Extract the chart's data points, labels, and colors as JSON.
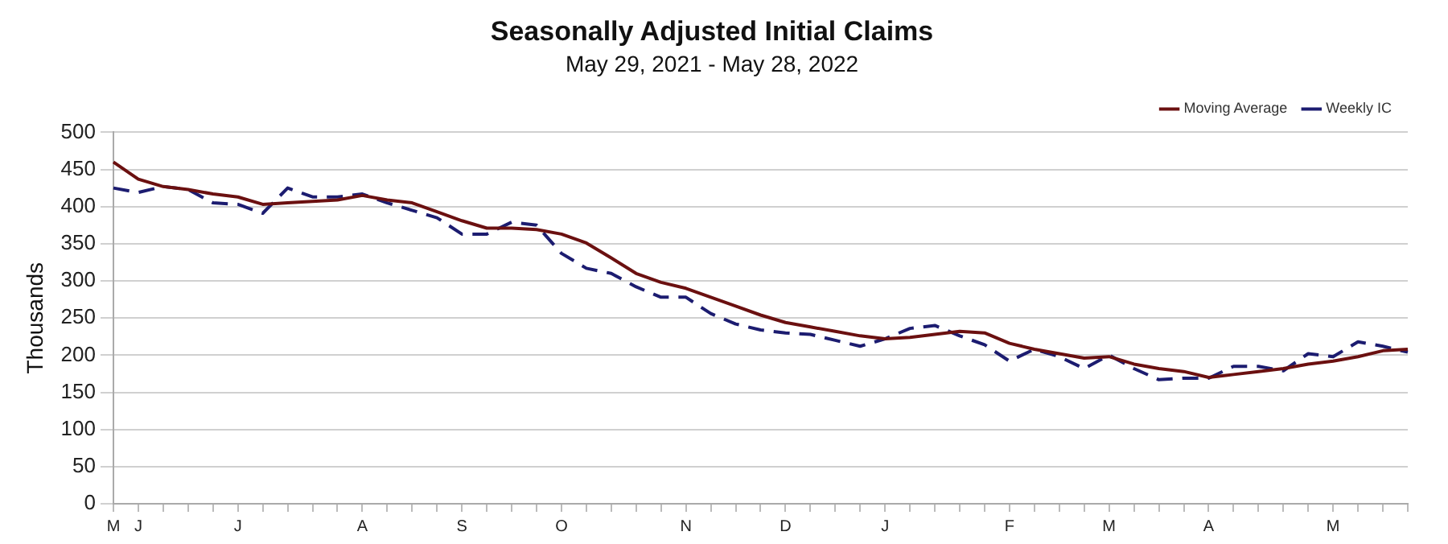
{
  "chart_data": {
    "type": "line",
    "title": "Seasonally Adjusted Initial Claims",
    "subtitle": "May 29, 2021 - May 28, 2022",
    "ylabel": "Thousands",
    "categories": [
      "M",
      "J",
      null,
      null,
      null,
      "J",
      null,
      null,
      null,
      null,
      "A",
      null,
      null,
      null,
      "S",
      null,
      null,
      null,
      "O",
      null,
      null,
      null,
      null,
      "N",
      null,
      null,
      null,
      "D",
      null,
      null,
      null,
      "J",
      null,
      null,
      null,
      null,
      "F",
      null,
      null,
      null,
      "M",
      null,
      null,
      null,
      "A",
      null,
      null,
      null,
      null,
      "M",
      null,
      null,
      null
    ],
    "ylim": [
      0,
      500
    ],
    "yticks": [
      0,
      50,
      100,
      150,
      200,
      250,
      300,
      350,
      400,
      450,
      500
    ],
    "grid": "y",
    "legend": "top right",
    "marker": "none",
    "series": [
      {
        "name": "Moving Average",
        "color": "#6b1010",
        "line_style": "solid",
        "values": [
          460,
          437,
          427,
          423,
          417,
          413,
          403,
          405,
          407,
          409,
          415,
          409,
          405,
          393,
          381,
          371,
          371,
          369,
          363,
          351,
          331,
          310,
          298,
          290,
          278,
          266,
          254,
          244,
          238,
          232,
          226,
          222,
          224,
          228,
          232,
          230,
          216,
          208,
          202,
          196,
          198,
          188,
          182,
          178,
          170,
          174,
          178,
          182,
          188,
          192,
          198,
          206,
          208
        ]
      },
      {
        "name": "Weekly IC",
        "color": "#1c1c70",
        "line_style": "dashed",
        "values": [
          425,
          419,
          427,
          423,
          405,
          403,
          391,
          425,
          413,
          413,
          417,
          405,
          395,
          385,
          363,
          363,
          379,
          375,
          337,
          317,
          310,
          292,
          278,
          278,
          256,
          242,
          234,
          230,
          228,
          220,
          212,
          222,
          236,
          240,
          226,
          214,
          192,
          208,
          198,
          182,
          200,
          182,
          167,
          169,
          169,
          185,
          185,
          179,
          202,
          198,
          218,
          212,
          204
        ]
      }
    ]
  }
}
